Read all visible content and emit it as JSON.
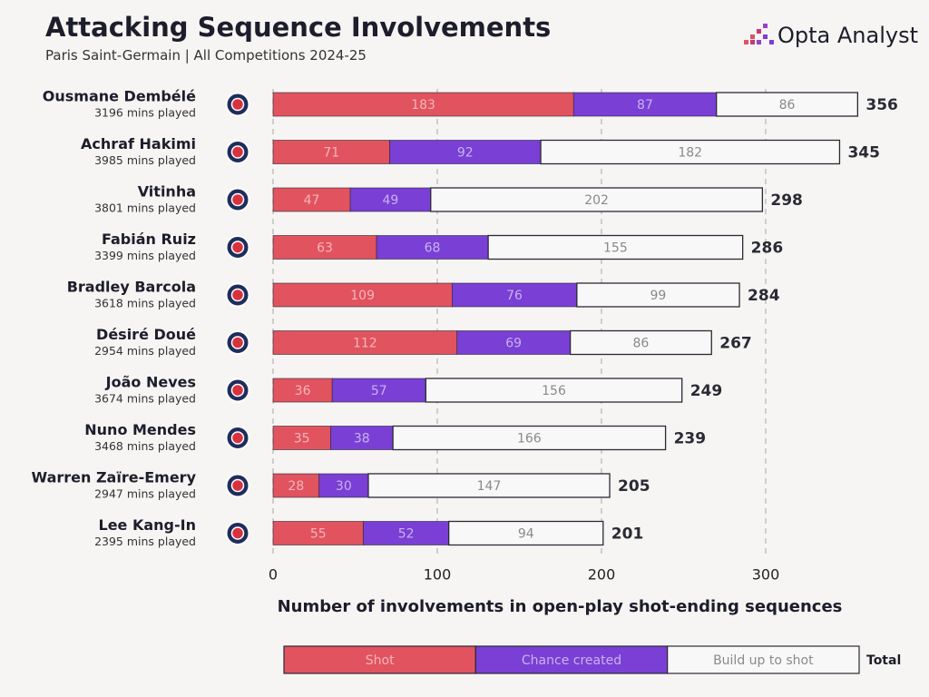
{
  "chart_data": {
    "type": "stacked-barh",
    "title": "Attacking Sequence Involvements",
    "subtitle": "Paris Saint-Germain | All Competitions 2024-25",
    "brand": "Opta Analyst",
    "x_label": "Number of involvements in open-play shot-ending sequences",
    "categories": [
      "Ousmane Dembélé",
      "Achraf Hakimi",
      "Vitinha",
      "Fabián Ruiz",
      "Bradley Barcola",
      "Désiré Doué",
      "João Neves",
      "Nuno Mendes",
      "Warren Zaïre-Emery",
      "Lee Kang-In"
    ],
    "sublabels": [
      "3196 mins played",
      "3985 mins played",
      "3801 mins played",
      "3399 mins played",
      "3618 mins played",
      "2954 mins played",
      "3674 mins played",
      "3468 mins played",
      "2947 mins played",
      "2395 mins played"
    ],
    "series": [
      {
        "name": "Shot",
        "color": "#e0535f",
        "values": [
          183,
          71,
          47,
          63,
          109,
          112,
          36,
          35,
          28,
          55
        ]
      },
      {
        "name": "Chance created",
        "color": "#7a3fd4",
        "values": [
          87,
          92,
          49,
          68,
          76,
          69,
          57,
          38,
          30,
          52
        ]
      },
      {
        "name": "Build up to shot",
        "color": "#f8f8f8",
        "values": [
          86,
          182,
          202,
          155,
          99,
          86,
          156,
          166,
          147,
          94
        ]
      }
    ],
    "total_label": "Total",
    "totals": [
      356,
      345,
      298,
      286,
      284,
      267,
      249,
      239,
      205,
      201
    ],
    "xlim": [
      0,
      360
    ],
    "xticks": [
      0,
      100,
      200,
      300
    ],
    "grid": true
  }
}
